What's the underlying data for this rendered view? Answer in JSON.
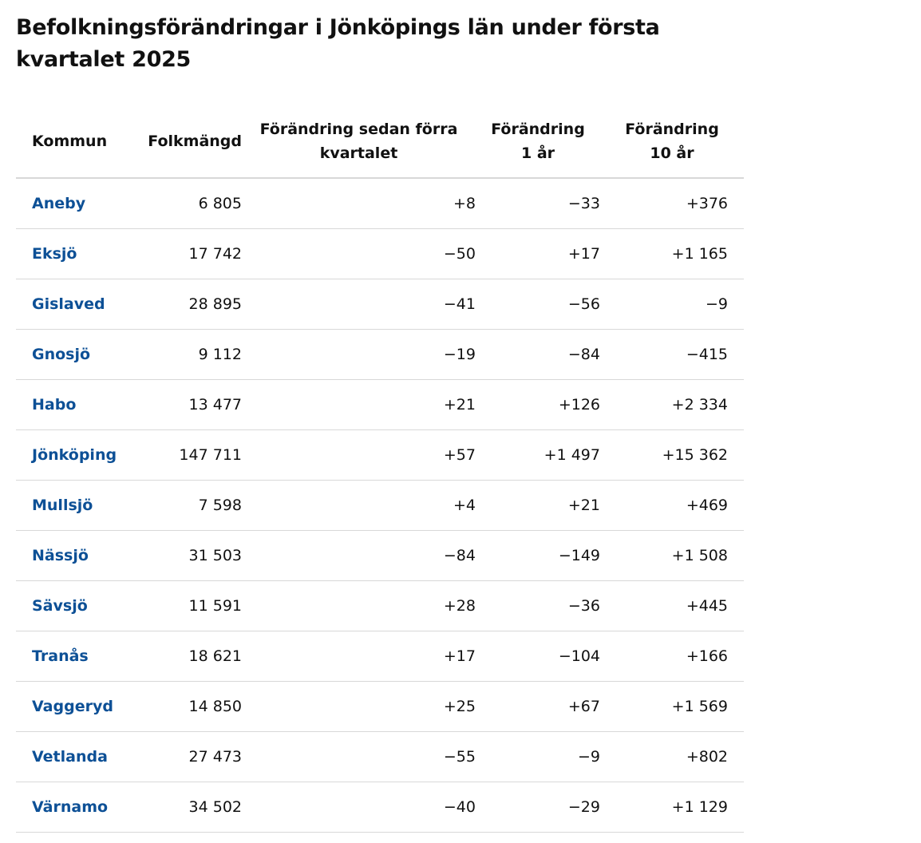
{
  "page_title": "Befolkningsförändringar i Jönköpings län under första kvartalet 2025",
  "table": {
    "headers": {
      "kommun": "Kommun",
      "folkmangd": "Folkmängd",
      "change_quarter_line1": "Förändring sedan förra",
      "change_quarter_line2": "kvartalet",
      "change_1y_line1": "Förändring",
      "change_1y_line2": "1 år",
      "change_10y_line1": "Förändring",
      "change_10y_line2": "10 år"
    },
    "rows": [
      {
        "kommun": "Aneby",
        "folkmangd": "6 805",
        "change_quarter": "+8",
        "change_1y": "−33",
        "change_10y": "+376"
      },
      {
        "kommun": "Eksjö",
        "folkmangd": "17 742",
        "change_quarter": "−50",
        "change_1y": "+17",
        "change_10y": "+1 165"
      },
      {
        "kommun": "Gislaved",
        "folkmangd": "28 895",
        "change_quarter": "−41",
        "change_1y": "−56",
        "change_10y": "−9"
      },
      {
        "kommun": "Gnosjö",
        "folkmangd": "9 112",
        "change_quarter": "−19",
        "change_1y": "−84",
        "change_10y": "−415"
      },
      {
        "kommun": "Habo",
        "folkmangd": "13 477",
        "change_quarter": "+21",
        "change_1y": "+126",
        "change_10y": "+2 334"
      },
      {
        "kommun": "Jönköping",
        "folkmangd": "147 711",
        "change_quarter": "+57",
        "change_1y": "+1 497",
        "change_10y": "+15 362"
      },
      {
        "kommun": "Mullsjö",
        "folkmangd": "7 598",
        "change_quarter": "+4",
        "change_1y": "+21",
        "change_10y": "+469"
      },
      {
        "kommun": "Nässjö",
        "folkmangd": "31 503",
        "change_quarter": "−84",
        "change_1y": "−149",
        "change_10y": "+1 508"
      },
      {
        "kommun": "Sävsjö",
        "folkmangd": "11 591",
        "change_quarter": "+28",
        "change_1y": "−36",
        "change_10y": "+445"
      },
      {
        "kommun": "Tranås",
        "folkmangd": "18 621",
        "change_quarter": "+17",
        "change_1y": "−104",
        "change_10y": "+166"
      },
      {
        "kommun": "Vaggeryd",
        "folkmangd": "14 850",
        "change_quarter": "+25",
        "change_1y": "+67",
        "change_10y": "+1 569"
      },
      {
        "kommun": "Vetlanda",
        "folkmangd": "27 473",
        "change_quarter": "−55",
        "change_1y": "−9",
        "change_10y": "+802"
      },
      {
        "kommun": "Värnamo",
        "folkmangd": "34 502",
        "change_quarter": "−40",
        "change_1y": "−29",
        "change_10y": "+1 129"
      }
    ]
  },
  "colors": {
    "link": "#0d5096",
    "divider": "#d8d8d8",
    "text": "#111111"
  }
}
